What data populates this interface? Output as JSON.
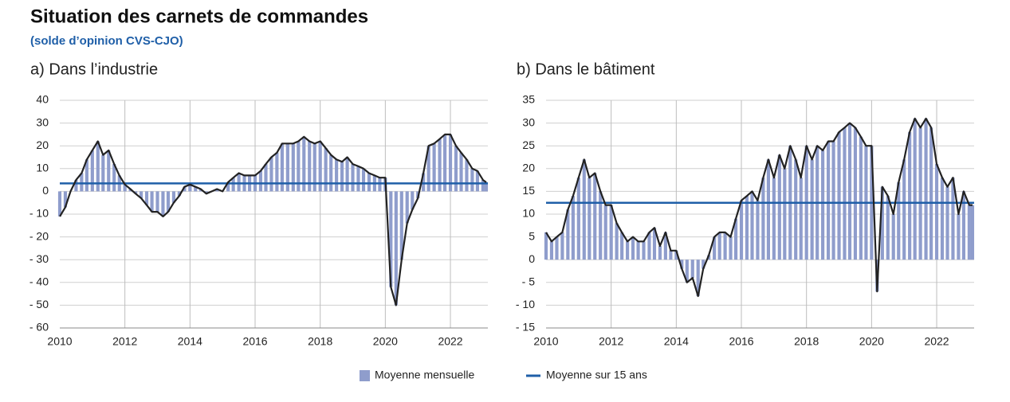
{
  "title": "Situation des carnets de commandes",
  "subtitle": "(solde d’opinion CVS-CJO)",
  "legend": [
    "Moyenne mensuelle",
    "Moyenne sur 15 ans"
  ],
  "chart_data": [
    {
      "type": "bar-line",
      "title": "a)  Dans l’industrie",
      "x": [
        2010.0,
        2010.17,
        2010.33,
        2010.5,
        2010.67,
        2010.83,
        2011.0,
        2011.17,
        2011.33,
        2011.5,
        2011.67,
        2011.83,
        2012.0,
        2012.17,
        2012.33,
        2012.5,
        2012.67,
        2012.83,
        2013.0,
        2013.17,
        2013.33,
        2013.5,
        2013.67,
        2013.83,
        2014.0,
        2014.17,
        2014.33,
        2014.5,
        2014.67,
        2014.83,
        2015.0,
        2015.17,
        2015.33,
        2015.5,
        2015.67,
        2015.83,
        2016.0,
        2016.17,
        2016.33,
        2016.5,
        2016.67,
        2016.83,
        2017.0,
        2017.17,
        2017.33,
        2017.5,
        2017.67,
        2017.83,
        2018.0,
        2018.17,
        2018.33,
        2018.5,
        2018.67,
        2018.83,
        2019.0,
        2019.17,
        2019.33,
        2019.5,
        2019.67,
        2019.83,
        2020.0,
        2020.17,
        2020.33,
        2020.5,
        2020.67,
        2020.83,
        2021.0,
        2021.17,
        2021.33,
        2021.5,
        2021.67,
        2021.83,
        2022.0,
        2022.17,
        2022.33,
        2022.5,
        2022.67,
        2022.83,
        2023.0,
        2023.1
      ],
      "values": [
        -11,
        -7,
        0,
        5,
        8,
        14,
        18,
        22,
        16,
        18,
        12,
        7,
        3,
        1,
        -1,
        -3,
        -6,
        -9,
        -9,
        -11,
        -9,
        -5,
        -2,
        2,
        3,
        2,
        1,
        -1,
        0,
        1,
        0,
        4,
        6,
        8,
        7,
        7,
        7,
        9,
        12,
        15,
        17,
        21,
        21,
        21,
        22,
        24,
        22,
        21,
        22,
        19,
        16,
        14,
        13,
        15,
        12,
        11,
        10,
        8,
        7,
        6,
        6,
        -42,
        -50,
        -30,
        -14,
        -8,
        -3,
        8,
        20,
        21,
        23,
        25,
        25,
        20,
        17,
        14,
        10,
        9,
        5,
        4
      ],
      "bar_color": "#8f9dcc",
      "line_color": "#222222",
      "mean": 3.5,
      "mean_color": "#1f5fa8",
      "xlim": [
        2010,
        2023.15
      ],
      "xticks": [
        2010,
        2012,
        2014,
        2016,
        2018,
        2020,
        2022
      ],
      "ylim": [
        -60,
        40
      ],
      "yticks": [
        {
          "value": -60,
          "label": "- 60"
        },
        {
          "value": -50,
          "label": "- 50"
        },
        {
          "value": -40,
          "label": "- 40"
        },
        {
          "value": -30,
          "label": "- 30"
        },
        {
          "value": -20,
          "label": "- 20"
        },
        {
          "value": -10,
          "label": "- 10"
        },
        0,
        10,
        20,
        30,
        40
      ],
      "grid": true
    },
    {
      "type": "bar-line",
      "title": "b)  Dans le bâtiment",
      "x": [
        2010.0,
        2010.17,
        2010.33,
        2010.5,
        2010.67,
        2010.83,
        2011.0,
        2011.17,
        2011.33,
        2011.5,
        2011.67,
        2011.83,
        2012.0,
        2012.17,
        2012.33,
        2012.5,
        2012.67,
        2012.83,
        2013.0,
        2013.17,
        2013.33,
        2013.5,
        2013.67,
        2013.83,
        2014.0,
        2014.17,
        2014.33,
        2014.5,
        2014.67,
        2014.83,
        2015.0,
        2015.17,
        2015.33,
        2015.5,
        2015.67,
        2015.83,
        2016.0,
        2016.17,
        2016.33,
        2016.5,
        2016.67,
        2016.83,
        2017.0,
        2017.17,
        2017.33,
        2017.5,
        2017.67,
        2017.83,
        2018.0,
        2018.17,
        2018.33,
        2018.5,
        2018.67,
        2018.83,
        2019.0,
        2019.17,
        2019.33,
        2019.5,
        2019.67,
        2019.83,
        2020.0,
        2020.17,
        2020.33,
        2020.5,
        2020.67,
        2020.83,
        2021.0,
        2021.17,
        2021.33,
        2021.5,
        2021.67,
        2021.83,
        2022.0,
        2022.17,
        2022.33,
        2022.5,
        2022.67,
        2022.83,
        2023.0,
        2023.1
      ],
      "values": [
        6,
        4,
        5,
        6,
        11,
        14,
        18,
        22,
        18,
        19,
        15,
        12,
        12,
        8,
        6,
        4,
        5,
        4,
        4,
        6,
        7,
        3,
        6,
        2,
        2,
        -2,
        -5,
        -4,
        -8,
        -2,
        1,
        5,
        6,
        6,
        5,
        9,
        13,
        14,
        15,
        13,
        18,
        22,
        18,
        23,
        20,
        25,
        22,
        18,
        25,
        22,
        25,
        24,
        26,
        26,
        28,
        29,
        30,
        29,
        27,
        25,
        25,
        -7,
        16,
        14,
        10,
        17,
        22,
        28,
        31,
        29,
        31,
        29,
        21,
        18,
        16,
        18,
        10,
        15,
        12,
        12
      ],
      "bar_color": "#8f9dcc",
      "line_color": "#222222",
      "mean": 12.5,
      "mean_color": "#1f5fa8",
      "xlim": [
        2010,
        2023.15
      ],
      "xticks": [
        2010,
        2012,
        2014,
        2016,
        2018,
        2020,
        2022
      ],
      "ylim": [
        -15,
        35
      ],
      "yticks": [
        {
          "value": -15,
          "label": "- 15"
        },
        {
          "value": -10,
          "label": "- 10"
        },
        {
          "value": -5,
          "label": "- 5"
        },
        0,
        5,
        10,
        15,
        20,
        25,
        30,
        35
      ],
      "grid": true
    }
  ]
}
